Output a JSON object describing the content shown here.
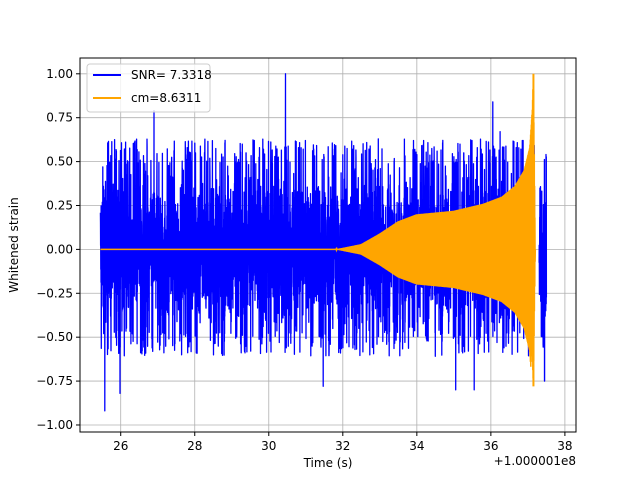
{
  "chart_data": {
    "type": "line",
    "title": "",
    "xlabel": "Time (s)",
    "ylabel": "Whitened strain",
    "offset_label": "+1.000001e8",
    "xlim": [
      24.9,
      38.3
    ],
    "ylim": [
      -1.04,
      1.09
    ],
    "x_ticks": [
      26,
      28,
      30,
      32,
      34,
      36,
      38
    ],
    "x_tick_labels": [
      "26",
      "28",
      "30",
      "32",
      "34",
      "36",
      "38"
    ],
    "y_ticks": [
      -1.0,
      -0.75,
      -0.5,
      -0.25,
      0.0,
      0.25,
      0.5,
      0.75,
      1.0
    ],
    "y_tick_labels": [
      "−1.00",
      "−0.75",
      "−0.50",
      "−0.25",
      "0.00",
      "0.25",
      "0.50",
      "0.75",
      "1.00"
    ],
    "grid": true,
    "legend_position": "top-left",
    "series": [
      {
        "name": "SNR= 7.3318",
        "color": "#0000ff",
        "kind": "noise-band",
        "x_range": [
          25.45,
          37.5
        ],
        "band_upper": 0.48,
        "band_lower": -0.46,
        "gap": [
          37.18,
          37.3
        ],
        "extrema": [
          {
            "x": 25.57,
            "y": -0.92
          },
          {
            "x": 25.98,
            "y": -0.82
          },
          {
            "x": 26.9,
            "y": 0.79
          },
          {
            "x": 30.45,
            "y": 1.0
          },
          {
            "x": 31.47,
            "y": -0.78
          },
          {
            "x": 35.05,
            "y": -0.8
          },
          {
            "x": 35.55,
            "y": -0.8
          },
          {
            "x": 36.05,
            "y": 0.84
          },
          {
            "x": 36.25,
            "y": 0.67
          },
          {
            "x": 36.85,
            "y": 0.62
          },
          {
            "x": 37.45,
            "y": -0.75
          }
        ]
      },
      {
        "name": "cm=8.6311",
        "color": "#ffa500",
        "kind": "chirp-envelope",
        "x_range": [
          25.45,
          37.2
        ],
        "envelope": [
          {
            "x": 25.45,
            "y": 0.0
          },
          {
            "x": 31.8,
            "y": 0.0
          },
          {
            "x": 32.5,
            "y": 0.03
          },
          {
            "x": 33.0,
            "y": 0.09
          },
          {
            "x": 33.5,
            "y": 0.16
          },
          {
            "x": 34.0,
            "y": 0.2
          },
          {
            "x": 35.0,
            "y": 0.22
          },
          {
            "x": 35.8,
            "y": 0.26
          },
          {
            "x": 36.3,
            "y": 0.3
          },
          {
            "x": 36.65,
            "y": 0.36
          },
          {
            "x": 36.9,
            "y": 0.45
          },
          {
            "x": 37.05,
            "y": 0.58
          },
          {
            "x": 37.12,
            "y": 0.8
          },
          {
            "x": 37.15,
            "y": 1.0
          },
          {
            "x": 37.18,
            "y": 0.4
          },
          {
            "x": 37.2,
            "y": 0.0
          }
        ],
        "peak_upper": 1.0,
        "peak_lower": -0.78
      }
    ]
  }
}
